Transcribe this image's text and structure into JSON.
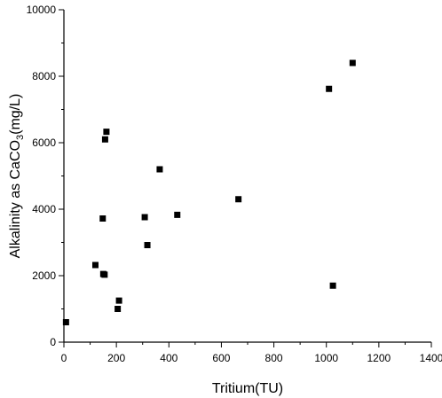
{
  "chart_data": {
    "type": "scatter",
    "xlabel": "Tritium(TU)",
    "ylabel_parts": {
      "before": "Alkalinity as CaCO",
      "sub": "3",
      "after": "(mg/L)"
    },
    "xlim": [
      0,
      1400
    ],
    "ylim": [
      0,
      10000
    ],
    "x_ticks": [
      0,
      200,
      400,
      600,
      800,
      1000,
      1200,
      1400
    ],
    "y_ticks": [
      0,
      2000,
      4000,
      6000,
      8000,
      10000
    ],
    "grid": false,
    "marker": "filled-square",
    "points": [
      {
        "x": 8,
        "y": 600
      },
      {
        "x": 120,
        "y": 2320
      },
      {
        "x": 150,
        "y": 2050
      },
      {
        "x": 155,
        "y": 2030
      },
      {
        "x": 148,
        "y": 3720
      },
      {
        "x": 157,
        "y": 6100
      },
      {
        "x": 162,
        "y": 6330
      },
      {
        "x": 205,
        "y": 1000
      },
      {
        "x": 210,
        "y": 1250
      },
      {
        "x": 308,
        "y": 3760
      },
      {
        "x": 318,
        "y": 2920
      },
      {
        "x": 365,
        "y": 5200
      },
      {
        "x": 432,
        "y": 3830
      },
      {
        "x": 665,
        "y": 4300
      },
      {
        "x": 1010,
        "y": 7620
      },
      {
        "x": 1025,
        "y": 1700
      },
      {
        "x": 1100,
        "y": 8400
      }
    ]
  }
}
